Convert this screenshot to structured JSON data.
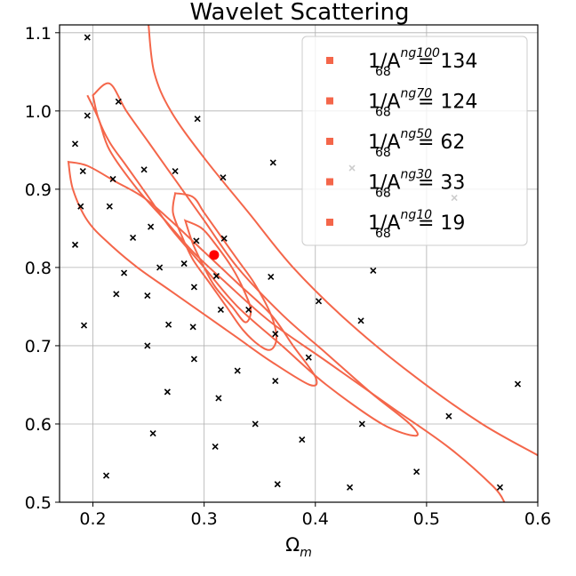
{
  "chart_data": {
    "type": "scatter",
    "title": "Wavelet Scattering",
    "xlabel": "Ω",
    "xlabel_sub": "m",
    "ylabel": "",
    "xlim": [
      0.17,
      0.6
    ],
    "ylim": [
      0.5,
      1.11
    ],
    "x_ticks": [
      0.2,
      0.3,
      0.4,
      0.5,
      0.6
    ],
    "x_tick_labels": [
      "0.2",
      "0.3",
      "0.4",
      "0.5",
      "0.6"
    ],
    "y_ticks": [
      0.5,
      0.6,
      0.7,
      0.8,
      0.9,
      1.0,
      1.1
    ],
    "y_tick_labels": [
      "0.5",
      "0.6",
      "0.7",
      "0.8",
      "0.9",
      "1.0",
      "1.1"
    ],
    "grid": true,
    "legend_position": "top-right",
    "contour_color": "#f4664a",
    "fiducial": {
      "x": 0.309,
      "y": 0.816,
      "color": "#ff0000"
    },
    "legend": [
      {
        "prefix": "1/A",
        "sup": "ng100",
        "sub": "68",
        "value": "134"
      },
      {
        "prefix": "1/A",
        "sup": "ng70",
        "sub": "68",
        "value": "124"
      },
      {
        "prefix": "1/A",
        "sup": "ng50",
        "sub": "68",
        "value": "62"
      },
      {
        "prefix": "1/A",
        "sup": "ng30",
        "sub": "68",
        "value": "33"
      },
      {
        "prefix": "1/A",
        "sup": "ng10",
        "sub": "68",
        "value": "19"
      }
    ],
    "samples": [
      [
        0.195,
        1.094
      ],
      [
        0.223,
        1.012
      ],
      [
        0.195,
        0.994
      ],
      [
        0.294,
        0.99
      ],
      [
        0.184,
        0.958
      ],
      [
        0.362,
        0.934
      ],
      [
        0.433,
        0.927
      ],
      [
        0.191,
        0.923
      ],
      [
        0.246,
        0.925
      ],
      [
        0.274,
        0.923
      ],
      [
        0.218,
        0.913
      ],
      [
        0.317,
        0.915
      ],
      [
        0.461,
        0.898
      ],
      [
        0.525,
        0.889
      ],
      [
        0.189,
        0.878
      ],
      [
        0.215,
        0.878
      ],
      [
        0.236,
        0.838
      ],
      [
        0.252,
        0.852
      ],
      [
        0.293,
        0.834
      ],
      [
        0.318,
        0.837
      ],
      [
        0.184,
        0.829
      ],
      [
        0.282,
        0.805
      ],
      [
        0.26,
        0.8
      ],
      [
        0.228,
        0.793
      ],
      [
        0.311,
        0.789
      ],
      [
        0.36,
        0.788
      ],
      [
        0.452,
        0.796
      ],
      [
        0.291,
        0.775
      ],
      [
        0.221,
        0.766
      ],
      [
        0.249,
        0.764
      ],
      [
        0.403,
        0.757
      ],
      [
        0.315,
        0.746
      ],
      [
        0.34,
        0.746
      ],
      [
        0.441,
        0.732
      ],
      [
        0.192,
        0.726
      ],
      [
        0.268,
        0.727
      ],
      [
        0.29,
        0.724
      ],
      [
        0.364,
        0.715
      ],
      [
        0.249,
        0.7
      ],
      [
        0.291,
        0.683
      ],
      [
        0.394,
        0.685
      ],
      [
        0.33,
        0.668
      ],
      [
        0.364,
        0.655
      ],
      [
        0.582,
        0.651
      ],
      [
        0.267,
        0.641
      ],
      [
        0.313,
        0.633
      ],
      [
        0.52,
        0.61
      ],
      [
        0.346,
        0.6
      ],
      [
        0.442,
        0.6
      ],
      [
        0.254,
        0.588
      ],
      [
        0.388,
        0.58
      ],
      [
        0.31,
        0.571
      ],
      [
        0.491,
        0.539
      ],
      [
        0.212,
        0.534
      ],
      [
        0.366,
        0.523
      ],
      [
        0.431,
        0.519
      ],
      [
        0.566,
        0.519
      ]
    ],
    "contours": [
      {
        "name": "ng10",
        "points": [
          [
            0.195,
            1.02
          ],
          [
            0.205,
            0.99
          ],
          [
            0.215,
            0.95
          ],
          [
            0.24,
            0.9
          ],
          [
            0.265,
            0.86
          ],
          [
            0.29,
            0.82
          ],
          [
            0.32,
            0.78
          ],
          [
            0.36,
            0.73
          ],
          [
            0.41,
            0.68
          ],
          [
            0.47,
            0.62
          ],
          [
            0.52,
            0.57
          ],
          [
            0.56,
            0.52
          ],
          [
            0.57,
            0.5
          ]
        ],
        "reverse": [
          [
            0.6,
            0.56
          ],
          [
            0.55,
            0.6
          ],
          [
            0.49,
            0.66
          ],
          [
            0.43,
            0.73
          ],
          [
            0.38,
            0.8
          ],
          [
            0.34,
            0.87
          ],
          [
            0.3,
            0.94
          ],
          [
            0.27,
            1.0
          ],
          [
            0.255,
            1.05
          ],
          [
            0.25,
            1.11
          ]
        ]
      },
      {
        "name": "ng30",
        "closed": true,
        "points": [
          [
            0.2,
            1.02
          ],
          [
            0.205,
            0.99
          ],
          [
            0.215,
            0.96
          ],
          [
            0.23,
            0.93
          ],
          [
            0.25,
            0.89
          ],
          [
            0.27,
            0.85
          ],
          [
            0.3,
            0.8
          ],
          [
            0.33,
            0.75
          ],
          [
            0.37,
            0.7
          ],
          [
            0.41,
            0.65
          ],
          [
            0.46,
            0.6
          ],
          [
            0.49,
            0.585
          ],
          [
            0.485,
            0.6
          ],
          [
            0.45,
            0.64
          ],
          [
            0.41,
            0.69
          ],
          [
            0.37,
            0.74
          ],
          [
            0.33,
            0.8
          ],
          [
            0.3,
            0.86
          ],
          [
            0.275,
            0.91
          ],
          [
            0.25,
            0.96
          ],
          [
            0.23,
            1.0
          ],
          [
            0.215,
            1.035
          ],
          [
            0.2,
            1.02
          ]
        ]
      },
      {
        "name": "ng50",
        "closed": true,
        "points": [
          [
            0.178,
            0.935
          ],
          [
            0.182,
            0.9
          ],
          [
            0.195,
            0.86
          ],
          [
            0.215,
            0.83
          ],
          [
            0.24,
            0.8
          ],
          [
            0.27,
            0.77
          ],
          [
            0.3,
            0.74
          ],
          [
            0.33,
            0.71
          ],
          [
            0.36,
            0.68
          ],
          [
            0.395,
            0.65
          ],
          [
            0.4,
            0.66
          ],
          [
            0.38,
            0.7
          ],
          [
            0.36,
            0.74
          ],
          [
            0.33,
            0.78
          ],
          [
            0.3,
            0.82
          ],
          [
            0.27,
            0.86
          ],
          [
            0.245,
            0.89
          ],
          [
            0.22,
            0.91
          ],
          [
            0.195,
            0.93
          ],
          [
            0.178,
            0.935
          ]
        ]
      },
      {
        "name": "ng70",
        "closed": true,
        "points": [
          [
            0.274,
            0.895
          ],
          [
            0.272,
            0.87
          ],
          [
            0.28,
            0.84
          ],
          [
            0.29,
            0.81
          ],
          [
            0.305,
            0.78
          ],
          [
            0.32,
            0.75
          ],
          [
            0.335,
            0.72
          ],
          [
            0.35,
            0.7
          ],
          [
            0.36,
            0.695
          ],
          [
            0.365,
            0.71
          ],
          [
            0.36,
            0.74
          ],
          [
            0.345,
            0.78
          ],
          [
            0.33,
            0.81
          ],
          [
            0.315,
            0.84
          ],
          [
            0.3,
            0.87
          ],
          [
            0.29,
            0.89
          ],
          [
            0.274,
            0.895
          ]
        ]
      },
      {
        "name": "ng100",
        "closed": true,
        "points": [
          [
            0.283,
            0.86
          ],
          [
            0.29,
            0.83
          ],
          [
            0.3,
            0.8
          ],
          [
            0.31,
            0.775
          ],
          [
            0.325,
            0.75
          ],
          [
            0.337,
            0.73
          ],
          [
            0.342,
            0.745
          ],
          [
            0.336,
            0.77
          ],
          [
            0.325,
            0.8
          ],
          [
            0.31,
            0.83
          ],
          [
            0.298,
            0.85
          ],
          [
            0.283,
            0.86
          ]
        ]
      }
    ]
  }
}
